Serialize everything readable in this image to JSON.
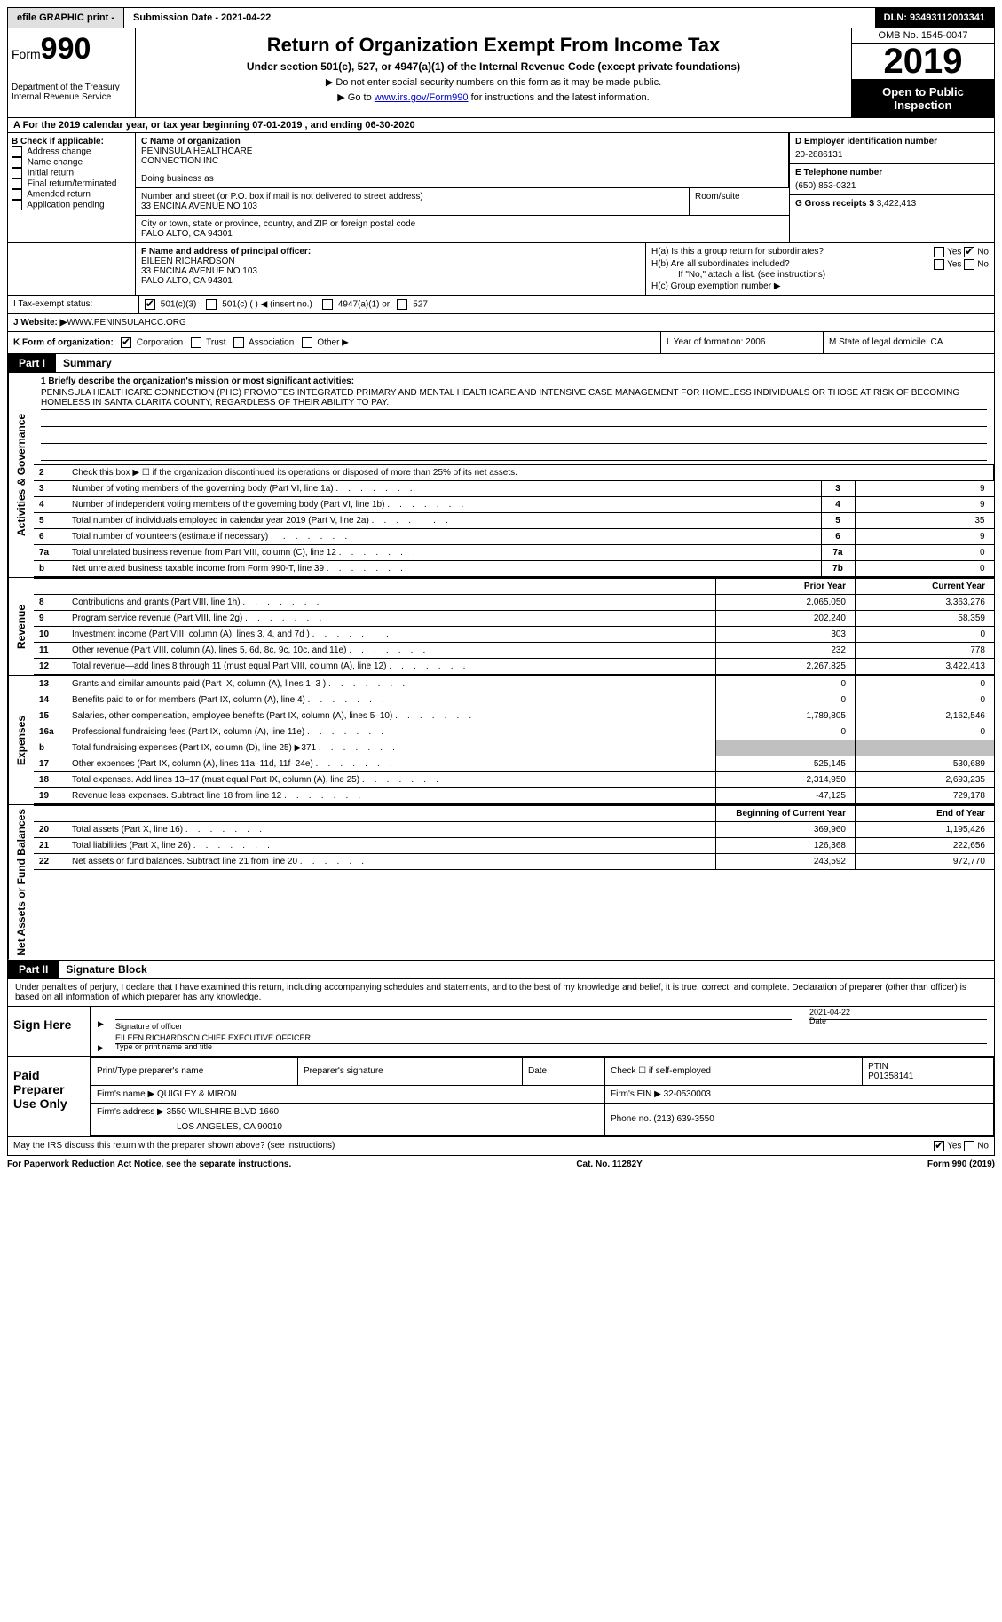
{
  "topbar": {
    "efile": "efile GRAPHIC print -",
    "submission": "Submission Date - 2021-04-22",
    "dln": "DLN: 93493112003341"
  },
  "header": {
    "form_word": "Form",
    "form_num": "990",
    "dept1": "Department of the Treasury",
    "dept2": "Internal Revenue Service",
    "title": "Return of Organization Exempt From Income Tax",
    "sub": "Under section 501(c), 527, or 4947(a)(1) of the Internal Revenue Code (except private foundations)",
    "note1": "▶ Do not enter social security numbers on this form as it may be made public.",
    "note2_pre": "▶ Go to ",
    "note2_link": "www.irs.gov/Form990",
    "note2_post": " for instructions and the latest information.",
    "omb": "OMB No. 1545-0047",
    "year": "2019",
    "open": "Open to Public Inspection"
  },
  "row_a": "A For the 2019 calendar year, or tax year beginning 07-01-2019    , and ending 06-30-2020",
  "col_b": {
    "title": "B Check if applicable:",
    "items": [
      "Address change",
      "Name change",
      "Initial return",
      "Final return/terminated",
      "Amended return",
      "Application pending"
    ]
  },
  "col_c": {
    "name_label": "C Name of organization",
    "name1": "PENINSULA HEALTHCARE",
    "name2": "CONNECTION INC",
    "dba": "Doing business as",
    "addr_label": "Number and street (or P.O. box if mail is not delivered to street address)",
    "room": "Room/suite",
    "addr": "33 ENCINA AVENUE NO 103",
    "city_label": "City or town, state or province, country, and ZIP or foreign postal code",
    "city": "PALO ALTO, CA  94301",
    "f_label": "F Name and address of principal officer:",
    "f_name": "EILEEN RICHARDSON",
    "f_addr1": "33 ENCINA AVENUE NO 103",
    "f_addr2": "PALO ALTO, CA  94301"
  },
  "col_d": {
    "ein_label": "D Employer identification number",
    "ein": "20-2886131",
    "tel_label": "E Telephone number",
    "tel": "(650) 853-0321",
    "gross_label": "G Gross receipts $",
    "gross": "3,422,413",
    "ha": "H(a)  Is this a group return for subordinates?",
    "hb": "H(b)  Are all subordinates included?",
    "hb_note": "If \"No,\" attach a list. (see instructions)",
    "hc": "H(c)  Group exemption number ▶"
  },
  "line_i": {
    "label": "I   Tax-exempt status:",
    "opts": [
      "501(c)(3)",
      "501(c) (  ) ◀ (insert no.)",
      "4947(a)(1) or",
      "527"
    ]
  },
  "line_j": {
    "label": "J   Website: ▶",
    "val": " WWW.PENINSULAHCC.ORG"
  },
  "line_k": {
    "label": "K Form of organization:",
    "opts": [
      "Corporation",
      "Trust",
      "Association",
      "Other ▶"
    ],
    "l": "L Year of formation: 2006",
    "m": "M State of legal domicile: CA"
  },
  "part1": {
    "label": "Part I",
    "title": "Summary"
  },
  "side_labels": {
    "ag": "Activities & Governance",
    "rev": "Revenue",
    "exp": "Expenses",
    "net": "Net Assets or Fund Balances"
  },
  "mission": {
    "label": "1    Briefly describe the organization's mission or most significant activities:",
    "text": "PENINSULA HEALTHCARE CONNECTION (PHC) PROMOTES INTEGRATED PRIMARY AND MENTAL HEALTHCARE AND INTENSIVE CASE MANAGEMENT FOR HOMELESS INDIVIDUALS OR THOSE AT RISK OF BECOMING HOMELESS IN SANTA CLARITA COUNTY, REGARDLESS OF THEIR ABILITY TO PAY."
  },
  "gov_rows": [
    {
      "n": "2",
      "d": "Check this box ▶ ☐  if the organization discontinued its operations or disposed of more than 25% of its net assets.",
      "r": "",
      "v": ""
    },
    {
      "n": "3",
      "d": "Number of voting members of the governing body (Part VI, line 1a)",
      "r": "3",
      "v": "9"
    },
    {
      "n": "4",
      "d": "Number of independent voting members of the governing body (Part VI, line 1b)",
      "r": "4",
      "v": "9"
    },
    {
      "n": "5",
      "d": "Total number of individuals employed in calendar year 2019 (Part V, line 2a)",
      "r": "5",
      "v": "35"
    },
    {
      "n": "6",
      "d": "Total number of volunteers (estimate if necessary)",
      "r": "6",
      "v": "9"
    },
    {
      "n": "7a",
      "d": "Total unrelated business revenue from Part VIII, column (C), line 12",
      "r": "7a",
      "v": "0"
    },
    {
      "n": "b",
      "d": "Net unrelated business taxable income from Form 990-T, line 39",
      "r": "7b",
      "v": "0"
    }
  ],
  "col_headers": {
    "prior": "Prior Year",
    "current": "Current Year",
    "beg": "Beginning of Current Year",
    "end": "End of Year"
  },
  "rev_rows": [
    {
      "n": "8",
      "d": "Contributions and grants (Part VIII, line 1h)",
      "p": "2,065,050",
      "c": "3,363,276"
    },
    {
      "n": "9",
      "d": "Program service revenue (Part VIII, line 2g)",
      "p": "202,240",
      "c": "58,359"
    },
    {
      "n": "10",
      "d": "Investment income (Part VIII, column (A), lines 3, 4, and 7d )",
      "p": "303",
      "c": "0"
    },
    {
      "n": "11",
      "d": "Other revenue (Part VIII, column (A), lines 5, 6d, 8c, 9c, 10c, and 11e)",
      "p": "232",
      "c": "778"
    },
    {
      "n": "12",
      "d": "Total revenue—add lines 8 through 11 (must equal Part VIII, column (A), line 12)",
      "p": "2,267,825",
      "c": "3,422,413"
    }
  ],
  "exp_rows": [
    {
      "n": "13",
      "d": "Grants and similar amounts paid (Part IX, column (A), lines 1–3 )",
      "p": "0",
      "c": "0"
    },
    {
      "n": "14",
      "d": "Benefits paid to or for members (Part IX, column (A), line 4)",
      "p": "0",
      "c": "0"
    },
    {
      "n": "15",
      "d": "Salaries, other compensation, employee benefits (Part IX, column (A), lines 5–10)",
      "p": "1,789,805",
      "c": "2,162,546"
    },
    {
      "n": "16a",
      "d": "Professional fundraising fees (Part IX, column (A), line 11e)",
      "p": "0",
      "c": "0"
    },
    {
      "n": "b",
      "d": "Total fundraising expenses (Part IX, column (D), line 25) ▶371",
      "p": "shaded",
      "c": "shaded"
    },
    {
      "n": "17",
      "d": "Other expenses (Part IX, column (A), lines 11a–11d, 11f–24e)",
      "p": "525,145",
      "c": "530,689"
    },
    {
      "n": "18",
      "d": "Total expenses. Add lines 13–17 (must equal Part IX, column (A), line 25)",
      "p": "2,314,950",
      "c": "2,693,235"
    },
    {
      "n": "19",
      "d": "Revenue less expenses. Subtract line 18 from line 12",
      "p": "-47,125",
      "c": "729,178"
    }
  ],
  "net_rows": [
    {
      "n": "20",
      "d": "Total assets (Part X, line 16)",
      "p": "369,960",
      "c": "1,195,426"
    },
    {
      "n": "21",
      "d": "Total liabilities (Part X, line 26)",
      "p": "126,368",
      "c": "222,656"
    },
    {
      "n": "22",
      "d": "Net assets or fund balances. Subtract line 21 from line 20",
      "p": "243,592",
      "c": "972,770"
    }
  ],
  "part2": {
    "label": "Part II",
    "title": "Signature Block"
  },
  "sig": {
    "text": "Under penalties of perjury, I declare that I have examined this return, including accompanying schedules and statements, and to the best of my knowledge and belief, it is true, correct, and complete. Declaration of preparer (other than officer) is based on all information of which preparer has any knowledge.",
    "sign_here": "Sign Here",
    "sig_officer": "Signature of officer",
    "date": "Date",
    "date_val": "2021-04-22",
    "name": "EILEEN RICHARDSON CHIEF EXECUTIVE OFFICER",
    "name_label": "Type or print name and title",
    "paid": "Paid Preparer Use Only",
    "prep_name": "Print/Type preparer's name",
    "prep_sig": "Preparer's signature",
    "prep_date": "Date",
    "prep_check": "Check ☐ if self-employed",
    "ptin_label": "PTIN",
    "ptin": "P01358141",
    "firm_name_label": "Firm's name     ▶",
    "firm_name": "QUIGLEY & MIRON",
    "firm_ein_label": "Firm's EIN ▶",
    "firm_ein": "32-0530003",
    "firm_addr_label": "Firm's address ▶",
    "firm_addr1": "3550 WILSHIRE BLVD 1660",
    "firm_addr2": "LOS ANGELES, CA  90010",
    "phone_label": "Phone no.",
    "phone": "(213) 639-3550"
  },
  "footer": {
    "discuss": "May the IRS discuss this return with the preparer shown above? (see instructions)",
    "paperwork": "For Paperwork Reduction Act Notice, see the separate instructions.",
    "cat": "Cat. No. 11282Y",
    "form": "Form 990 (2019)"
  }
}
